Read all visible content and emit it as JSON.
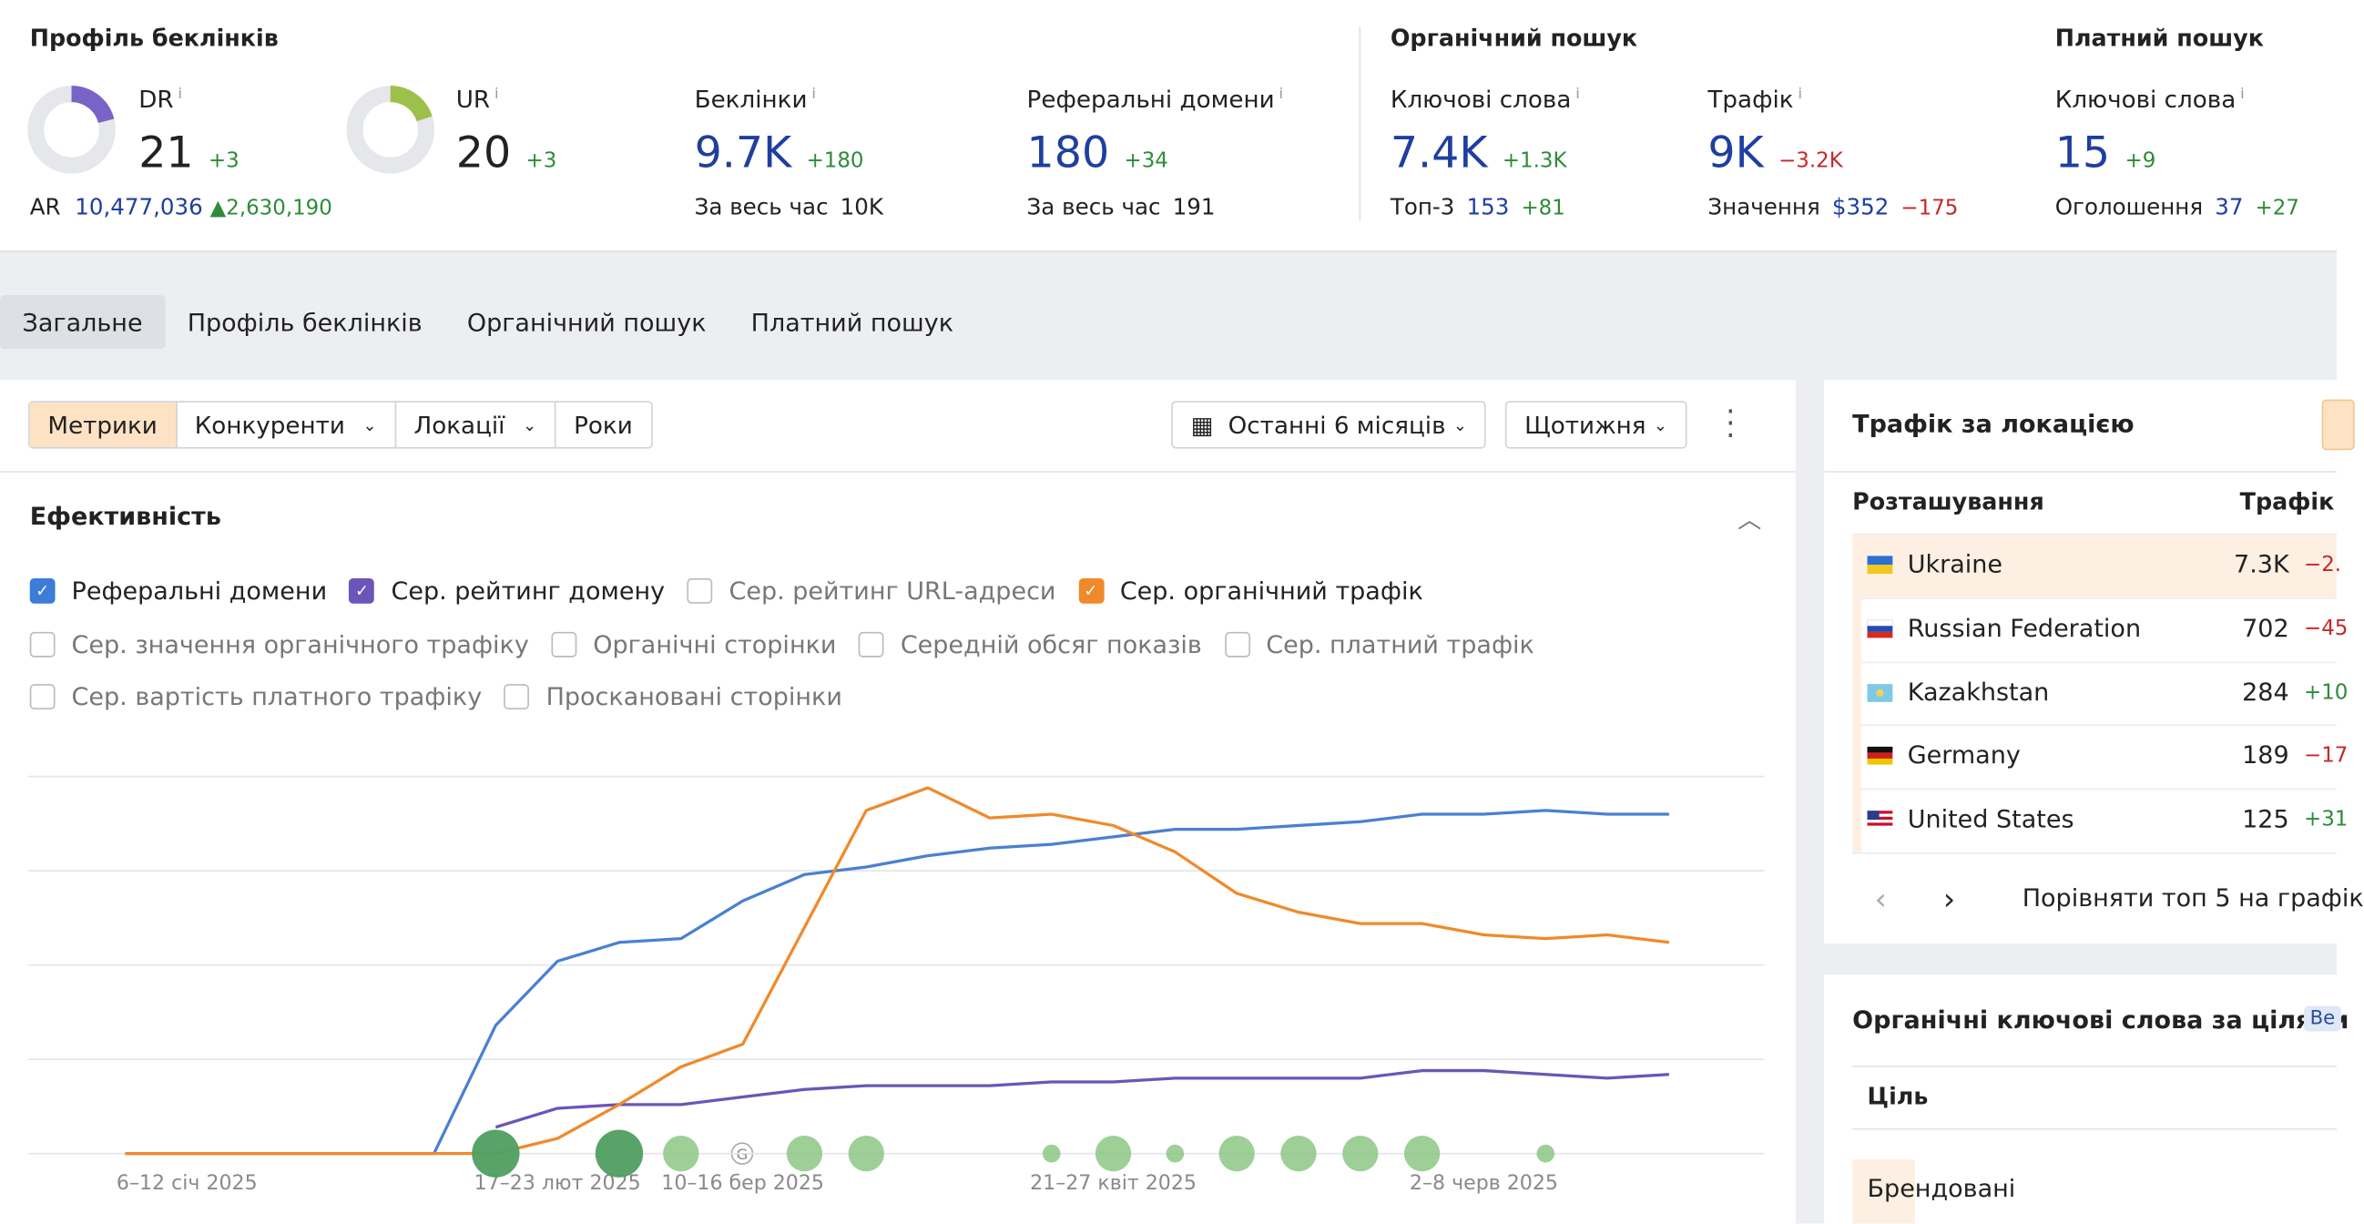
{
  "header": {
    "backlinks": {
      "title": "Профіль беклінків",
      "dr": {
        "label": "DR",
        "info": "i",
        "value": 21,
        "delta": "+3",
        "ar_label": "AR",
        "ar_value": "10,477,036",
        "ar_delta": "2,630,190"
      },
      "ur": {
        "label": "UR",
        "info": "i",
        "value": 20,
        "delta": "+3"
      },
      "links": {
        "label": "Беклінки",
        "info": "i",
        "value": "9.7K",
        "delta": "+180",
        "sub_label": "За весь час",
        "sub_value": "10K"
      },
      "domains": {
        "label": "Реферальні домени",
        "info": "i",
        "value": 180,
        "delta": "+34",
        "sub_label": "За весь час",
        "sub_value": 191
      }
    },
    "organic": {
      "title": "Органічний пошук",
      "keywords": {
        "label": "Ключові слова",
        "info": "i",
        "value": "7.4K",
        "delta": "+1.3K",
        "sub_label": "Топ-3",
        "sub_value": 153,
        "sub_delta": "+81"
      },
      "traffic": {
        "label": "Трафік",
        "info": "i",
        "value": "9K",
        "delta": "−3.2K",
        "sub_label": "Значення",
        "sub_value": "$352",
        "sub_delta": "−175"
      }
    },
    "paid": {
      "title": "Платний пошук",
      "keywords": {
        "label": "Ключові слова",
        "info": "i",
        "value": 15,
        "delta": "+9",
        "sub_label": "Оголошення",
        "sub_value": 37,
        "sub_delta": "+27"
      }
    }
  },
  "tabs": [
    "Загальне",
    "Профіль беклінків",
    "Органічний пошук",
    "Платний пошук"
  ],
  "toolbar": {
    "groups": [
      "Метрики",
      "Конкуренти",
      "Локації",
      "Роки"
    ],
    "period": "Останні 6 місяців",
    "interval": "Щотижня"
  },
  "performance": {
    "title": "Ефективність",
    "checkboxes": [
      [
        {
          "label": "Реферальні домени",
          "checked": true,
          "color": "#3b7dd8"
        },
        {
          "label": "Сер. рейтинг домену",
          "checked": true,
          "color": "#6b55b8"
        },
        {
          "label": "Сер. рейтинг URL-адреси",
          "checked": false
        },
        {
          "label": "Сер. органічний трафік",
          "checked": true,
          "color": "#ef8a2a"
        }
      ],
      [
        {
          "label": "Сер. значення органічного трафіку",
          "checked": false
        },
        {
          "label": "Органічні сторінки",
          "checked": false
        },
        {
          "label": "Середній обсяг показів",
          "checked": false
        },
        {
          "label": "Сер. платний трафік",
          "checked": false
        }
      ],
      [
        {
          "label": "Сер. вартість платного трафіку",
          "checked": false
        },
        {
          "label": "Проскановані сторінки",
          "checked": false
        }
      ]
    ]
  },
  "chart_data": {
    "type": "line",
    "ylim": [
      0,
      100
    ],
    "yticks": [
      0,
      25,
      50,
      75,
      100
    ],
    "grid": true,
    "categories": [
      null,
      "6–12 січ 2025",
      null,
      null,
      null,
      null,
      null,
      "17–23 лют 2025",
      null,
      null,
      "10–16 бер 2025",
      null,
      null,
      null,
      null,
      null,
      "21–27 квіт 2025",
      null,
      null,
      null,
      null,
      null,
      "2–8 черв 2025",
      null,
      null,
      null
    ],
    "series": [
      {
        "name": "Реферальні домени",
        "color": "#4a80d0",
        "values": [
          0,
          0,
          0,
          0,
          0,
          0,
          34,
          51,
          56,
          57,
          67,
          74,
          76,
          79,
          81,
          82,
          84,
          86,
          86,
          87,
          88,
          90,
          90,
          91,
          90,
          90
        ]
      },
      {
        "name": "Сер. рейтинг домену",
        "color": "#6b55b8",
        "values": [
          null,
          null,
          null,
          null,
          null,
          null,
          7,
          12,
          13,
          13,
          15,
          17,
          18,
          18,
          18,
          19,
          19,
          20,
          20,
          20,
          20,
          22,
          22,
          21,
          20,
          21
        ]
      },
      {
        "name": "Сер. органічний трафік",
        "color": "#ef8a2a",
        "values": [
          0,
          0,
          0,
          0,
          0,
          0,
          0,
          4,
          13,
          23,
          29,
          60,
          91,
          97,
          89,
          90,
          87,
          80,
          69,
          64,
          61,
          61,
          58,
          57,
          58,
          56
        ]
      }
    ],
    "events": [
      null,
      null,
      null,
      null,
      null,
      null,
      16,
      null,
      16,
      12,
      null,
      12,
      12,
      null,
      null,
      6,
      12,
      6,
      12,
      12,
      12,
      12,
      null,
      6,
      null,
      null
    ],
    "event_marker": "G"
  },
  "locations": {
    "title": "Трафік за локацією",
    "col_location": "Розташування",
    "col_traffic": "Трафік",
    "rows": [
      {
        "name": "Ukraine",
        "traffic": "7.3K",
        "delta": "−2."
      },
      {
        "name": "Russian Federation",
        "traffic": 702,
        "delta": "−45"
      },
      {
        "name": "Kazakhstan",
        "traffic": 284,
        "delta": "+10"
      },
      {
        "name": "Germany",
        "traffic": 189,
        "delta": "−17"
      },
      {
        "name": "United States",
        "traffic": 125,
        "delta": "+31"
      }
    ],
    "compare": "Порівняти топ 5 на графік"
  },
  "intents": {
    "title": "Органічні ключові слова за цілями",
    "badge": "Be",
    "col": "Ціль",
    "row": "Брендовані"
  }
}
